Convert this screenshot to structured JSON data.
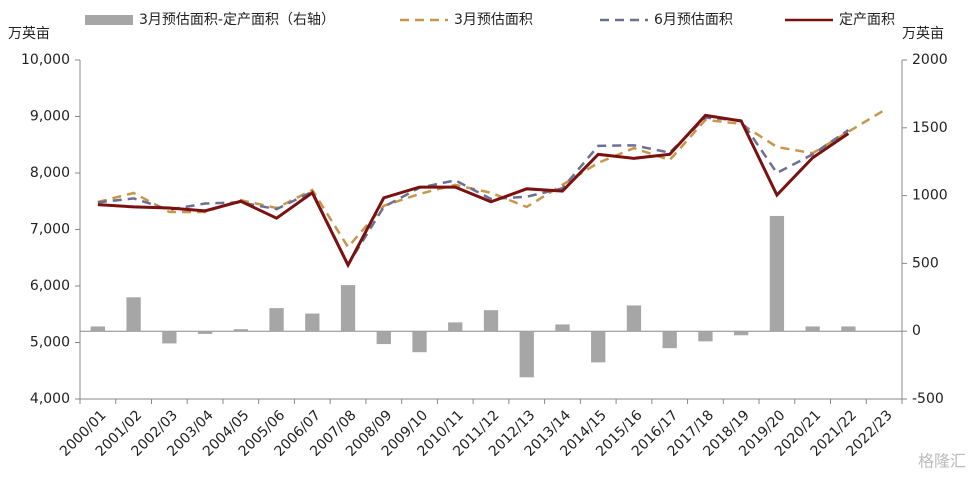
{
  "chart_data": {
    "type": "bar-line",
    "y_label": "万英亩",
    "y2_label": "万英亩",
    "categories": [
      "2000/01",
      "2001/02",
      "2002/03",
      "2003/04",
      "2004/05",
      "2005/06",
      "2006/07",
      "2007/08",
      "2008/09",
      "2009/10",
      "2010/11",
      "2011/12",
      "2012/13",
      "2013/14",
      "2014/15",
      "2015/16",
      "2016/17",
      "2017/18",
      "2018/19",
      "2019/20",
      "2020/21",
      "2021/22",
      "2022/23"
    ],
    "series": [
      {
        "name": "3月预估面积-定产面积（右轴）",
        "type": "bar",
        "axis": "y2",
        "color": "#a6a6a6",
        "values": [
          35,
          250,
          -90,
          -20,
          15,
          170,
          130,
          340,
          -95,
          -155,
          65,
          155,
          -340,
          50,
          -230,
          190,
          -125,
          -75,
          -30,
          850,
          35,
          35,
          null
        ]
      },
      {
        "name": "3月预估面积",
        "type": "line",
        "dash": true,
        "color": "#c8964b",
        "values": [
          7487,
          7646,
          7310,
          7310,
          7520,
          7380,
          7700,
          6690,
          7420,
          7630,
          7790,
          7650,
          7400,
          7790,
          8180,
          8440,
          8230,
          8940,
          8870,
          8460,
          8350,
          8730,
          9110
        ]
      },
      {
        "name": "6月预估面积",
        "type": "line",
        "dash": true,
        "color": "#6b7090",
        "values": [
          7480,
          7550,
          7350,
          7460,
          7480,
          7360,
          7670,
          6380,
          7400,
          7740,
          7870,
          7540,
          7580,
          7730,
          8480,
          8490,
          8360,
          8980,
          8930,
          8000,
          8330,
          8760,
          null
        ]
      },
      {
        "name": "定产面积",
        "type": "line",
        "dash": false,
        "color": "#7b1010",
        "values": [
          7440,
          7400,
          7380,
          7330,
          7500,
          7200,
          7650,
          6370,
          7560,
          7750,
          7750,
          7490,
          7720,
          7680,
          8330,
          8260,
          8330,
          9020,
          8920,
          7610,
          8270,
          8700,
          null
        ]
      }
    ],
    "ylim": [
      4000,
      10000
    ],
    "yticks": [
      {
        "value": 4000,
        "label": "4,000"
      },
      {
        "value": 5000,
        "label": "5,000"
      },
      {
        "value": 6000,
        "label": "6,000"
      },
      {
        "value": 7000,
        "label": "7,000"
      },
      {
        "value": 8000,
        "label": "8,000"
      },
      {
        "value": 9000,
        "label": "9,000"
      },
      {
        "value": 10000,
        "label": "10,000"
      }
    ],
    "y2lim": [
      -500,
      2000
    ],
    "y2ticks": [
      -500,
      0,
      500,
      1000,
      1500,
      2000
    ],
    "grid": false
  },
  "watermark": "格隆汇"
}
